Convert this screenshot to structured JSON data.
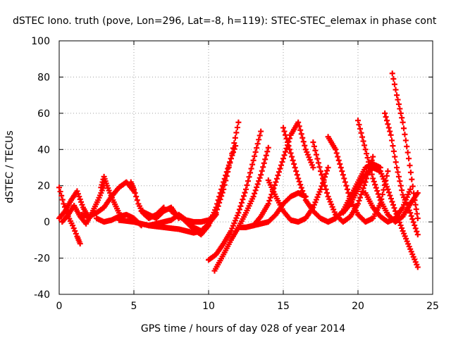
{
  "chart_data": {
    "type": "scatter",
    "title": "dSTEC Iono. truth (pove, Lon=296, Lat=-8, h=119): STEC-STEC_elemax in phase cont",
    "xlabel": "GPS time / hours of day 028 of year 2014",
    "ylabel": "dSTEC  / TECUs",
    "xlim": [
      0,
      25
    ],
    "ylim": [
      -40,
      100
    ],
    "xticks": [
      0,
      5,
      10,
      15,
      20,
      25
    ],
    "yticks": [
      -40,
      -20,
      0,
      20,
      40,
      60,
      80,
      100
    ],
    "grid": true,
    "legend": "none",
    "marker": "+",
    "color": "#ff0000",
    "series": [
      {
        "x": [
          0.0,
          0.3,
          0.6,
          0.9,
          1.2,
          1.4
        ],
        "y": [
          19,
          10,
          3,
          -2,
          -8,
          -12
        ]
      },
      {
        "x": [
          0.0,
          0.4,
          0.8,
          1.2,
          1.6,
          2.0
        ],
        "y": [
          2,
          6,
          12,
          17,
          8,
          2
        ]
      },
      {
        "x": [
          0.2,
          0.6,
          1.0,
          1.4,
          1.8,
          2.2,
          2.6,
          3.0
        ],
        "y": [
          0,
          4,
          9,
          3,
          -1,
          5,
          12,
          20
        ]
      },
      {
        "x": [
          1.5,
          2.0,
          2.5,
          3.0,
          3.5,
          4.0,
          4.5,
          5.0
        ],
        "y": [
          4,
          3,
          5,
          8,
          14,
          19,
          22,
          17
        ]
      },
      {
        "x": [
          2.5,
          3.0,
          3.5,
          4.0,
          4.5,
          5.0,
          5.5
        ],
        "y": [
          2,
          0,
          1,
          3,
          4,
          2,
          -2
        ]
      },
      {
        "x": [
          2.8,
          3.0,
          3.2,
          3.6,
          4.0
        ],
        "y": [
          19,
          25,
          20,
          12,
          5
        ]
      },
      {
        "x": [
          4.8,
          5.0,
          5.3,
          5.6,
          6.0,
          6.5,
          7.0
        ],
        "y": [
          22,
          18,
          10,
          5,
          2,
          4,
          8
        ]
      },
      {
        "x": [
          5.5,
          6.0,
          6.5,
          7.0,
          7.5,
          8.0
        ],
        "y": [
          6,
          4,
          2,
          6,
          8,
          2
        ]
      },
      {
        "x": [
          6.0,
          7.0,
          7.5,
          8.0,
          8.5,
          9.0,
          9.5,
          10.0
        ],
        "y": [
          -2,
          0,
          1,
          4,
          1,
          -3,
          -5,
          -2
        ]
      },
      {
        "x": [
          4.0,
          5.0,
          6.0,
          7.0,
          8.0,
          9.0,
          9.5,
          10.0,
          10.5
        ],
        "y": [
          1,
          0,
          -2,
          -3,
          -4,
          -6,
          -5,
          -1,
          4
        ]
      },
      {
        "x": [
          7.5,
          8.0,
          8.5,
          9.0,
          9.5,
          10.0,
          10.5,
          11.0,
          11.5,
          12.0
        ],
        "y": [
          6,
          3,
          1,
          0,
          0,
          1,
          5,
          18,
          35,
          55
        ]
      },
      {
        "x": [
          8.0,
          8.5,
          9.0,
          9.5,
          10.0,
          10.5,
          11.0,
          11.5,
          11.8
        ],
        "y": [
          4,
          0,
          -4,
          -7,
          -2,
          8,
          22,
          35,
          42
        ]
      },
      {
        "x": [
          10.0,
          10.5,
          11.0,
          11.5,
          12.0,
          12.5,
          13.0,
          13.5
        ],
        "y": [
          -21,
          -18,
          -12,
          -5,
          5,
          18,
          34,
          50
        ]
      },
      {
        "x": [
          10.4,
          11.0,
          11.5,
          12.0,
          12.5,
          13.0,
          13.5,
          14.0
        ],
        "y": [
          -27,
          -18,
          -10,
          -3,
          5,
          14,
          26,
          41
        ]
      },
      {
        "x": [
          12.0,
          12.5,
          13.0,
          13.5,
          14.0,
          14.5,
          15.0,
          15.5,
          16.0,
          16.5
        ],
        "y": [
          -3,
          -3,
          -2,
          -1,
          0,
          4,
          10,
          14,
          16,
          14
        ]
      },
      {
        "x": [
          13.0,
          13.5,
          14.0,
          14.5,
          15.0,
          15.5,
          16.0,
          16.5,
          17.0
        ],
        "y": [
          -2,
          3,
          10,
          22,
          35,
          48,
          55,
          40,
          30
        ]
      },
      {
        "x": [
          14.0,
          14.5,
          15.0,
          15.5,
          16.0,
          16.5,
          17.0,
          17.5,
          18.0
        ],
        "y": [
          23,
          14,
          6,
          1,
          0,
          2,
          8,
          18,
          30
        ]
      },
      {
        "x": [
          15.0,
          15.5,
          16.0,
          16.5,
          17.0,
          17.5,
          18.0,
          18.5
        ],
        "y": [
          52,
          38,
          24,
          12,
          6,
          2,
          0,
          2
        ]
      },
      {
        "x": [
          17.0,
          17.5,
          18.0,
          18.5,
          19.0,
          19.5,
          20.0,
          20.5,
          21.0
        ],
        "y": [
          44,
          28,
          14,
          4,
          0,
          3,
          10,
          22,
          36
        ]
      },
      {
        "x": [
          18.0,
          18.5,
          19.0,
          19.5,
          20.0,
          20.5,
          21.0,
          21.5,
          22.0
        ],
        "y": [
          47,
          40,
          26,
          12,
          4,
          0,
          2,
          10,
          28
        ]
      },
      {
        "x": [
          20.0,
          20.5,
          21.0,
          21.5,
          22.0,
          22.5,
          23.0,
          23.5,
          24.0
        ],
        "y": [
          56,
          40,
          24,
          12,
          4,
          0,
          3,
          10,
          16
        ]
      },
      {
        "x": [
          21.8,
          22.2,
          22.6,
          23.0,
          23.5,
          24.0
        ],
        "y": [
          60,
          48,
          30,
          15,
          5,
          -7
        ]
      },
      {
        "x": [
          22.3,
          22.6,
          23.0,
          23.4,
          23.8,
          24.0
        ],
        "y": [
          82,
          70,
          55,
          35,
          12,
          2
        ]
      },
      {
        "x": [
          19.0,
          19.5,
          20.0,
          20.5,
          21.0,
          21.5,
          22.0,
          22.5,
          23.0,
          23.5,
          24.0
        ],
        "y": [
          5,
          10,
          18,
          26,
          30,
          28,
          18,
          6,
          -5,
          -15,
          -25
        ]
      },
      {
        "x": [
          18.0,
          18.5,
          19.0,
          19.5,
          20.0,
          20.5,
          21.0,
          21.5
        ],
        "y": [
          0,
          2,
          6,
          14,
          22,
          30,
          32,
          30
        ]
      },
      {
        "x": [
          20.5,
          21.0,
          21.5,
          22.0,
          22.5,
          23.0,
          23.5
        ],
        "y": [
          16,
          8,
          3,
          0,
          2,
          8,
          18
        ]
      }
    ]
  }
}
